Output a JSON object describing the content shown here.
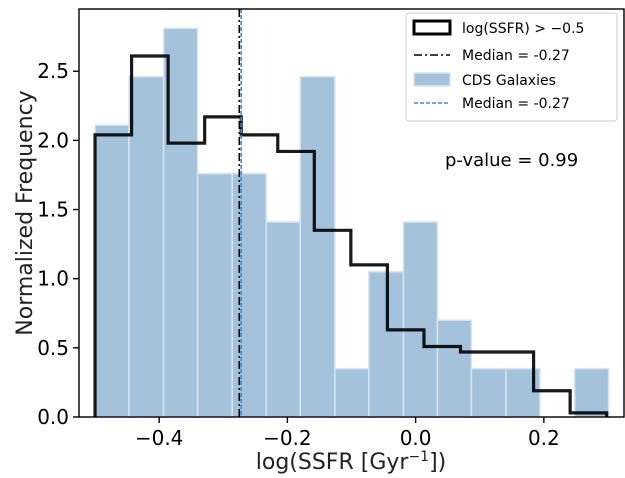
{
  "chart_data": {
    "type": "histogram",
    "xlabel": "log(SSFR [Gyr",
    "xlabel_sup": "−1",
    "xlabel_end": "])",
    "ylabel": "Normalized Frequency",
    "xlim": [
      -0.525,
      0.325
    ],
    "ylim": [
      0,
      2.95
    ],
    "x_ticks": [
      -0.4,
      -0.2,
      0.0,
      0.2
    ],
    "x_tick_labels": [
      "−0.4",
      "−0.2",
      "0.0",
      "0.2"
    ],
    "y_ticks": [
      0.0,
      0.5,
      1.0,
      1.5,
      2.0,
      2.5
    ],
    "y_tick_labels": [
      "0.0",
      "0.5",
      "1.0",
      "1.5",
      "2.0",
      "2.5"
    ],
    "grid": false,
    "legend_position": "top-right",
    "series": [
      {
        "name": "log(SSFR) > −0.5",
        "style": "step",
        "color": "#000000",
        "bin_edges": [
          -0.5,
          -0.443,
          -0.386,
          -0.329,
          -0.272,
          -0.215,
          -0.158,
          -0.101,
          -0.044,
          0.013,
          0.07,
          0.127,
          0.184,
          0.241,
          0.298
        ],
        "values": [
          2.04,
          2.61,
          1.98,
          2.17,
          2.04,
          1.92,
          1.35,
          1.1,
          0.63,
          0.51,
          0.47,
          0.47,
          0.19,
          0.03
        ]
      },
      {
        "name": "CDS Galaxies",
        "style": "filled",
        "color": "#a5c2dc",
        "bin_edges": [
          -0.5,
          -0.447,
          -0.393,
          -0.34,
          -0.286,
          -0.233,
          -0.18,
          -0.126,
          -0.073,
          -0.019,
          0.034,
          0.087,
          0.141,
          0.194,
          0.248,
          0.301
        ],
        "values": [
          2.11,
          2.46,
          2.81,
          1.76,
          1.76,
          1.41,
          2.46,
          0.35,
          1.05,
          1.41,
          0.7,
          0.35,
          0.35,
          0.0,
          0.35
        ]
      }
    ],
    "reference_lines": [
      {
        "name": "Median = -0.27",
        "x": -0.275,
        "style": "dashdot",
        "color": "#000000"
      },
      {
        "name": "Median = -0.27",
        "x": -0.272,
        "style": "dashed",
        "color": "#4a8bc4"
      }
    ],
    "annotation": "p-value = 0.99"
  }
}
